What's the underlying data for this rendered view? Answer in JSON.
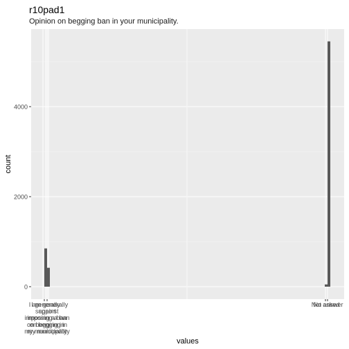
{
  "chart_data": {
    "type": "bar",
    "title": "r10pad1",
    "subtitle": "Opinion on begging ban in your municipality.",
    "xlabel": "values",
    "ylabel": "count",
    "ylim": [
      0,
      5800
    ],
    "yticks": [
      0,
      2000,
      4000
    ],
    "grid": true,
    "legend": "none",
    "x_tick_labels": [
      {
        "group": "left",
        "texts": [
          "I generally",
          "support",
          "imposing a ban",
          "on begging in",
          "my municipality",
          "I am generally",
          "against",
          "imposing a ban",
          "on begging in",
          "my municipality"
        ]
      },
      {
        "group": "right",
        "texts": [
          "Not asked",
          "No answer"
        ]
      }
    ],
    "bars": [
      {
        "group": "left",
        "category": "I generally support imposing a ban on begging in my municipality",
        "value": 850
      },
      {
        "group": "left",
        "category": "I am generally against imposing a ban on begging in my municipality",
        "value": 420
      },
      {
        "group": "right",
        "category": "No answer",
        "value": 50
      },
      {
        "group": "right",
        "category": "Not asked",
        "value": 5450
      }
    ],
    "colors": {
      "panel": "#EBEBEB",
      "grid_major": "#FFFFFF",
      "grid_minor": "#F5F5F5",
      "bar": "#595959",
      "tick_text": "#4D4D4D",
      "axis_title": "#000000"
    }
  }
}
